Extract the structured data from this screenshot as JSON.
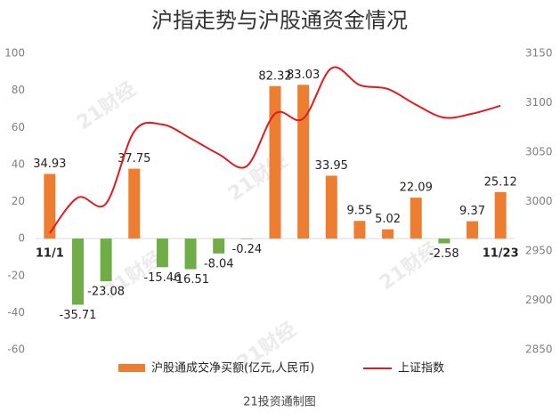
{
  "chart_data": {
    "type": "bar_line",
    "title": "沪指走势与沪股通资金情况",
    "footer": "21投资通制图",
    "watermark": "21财经",
    "categories": [
      "11/1",
      null,
      null,
      null,
      null,
      null,
      null,
      null,
      null,
      null,
      null,
      null,
      null,
      null,
      null,
      null,
      "11/23"
    ],
    "series": [
      {
        "name": "沪股通成交净买额(亿元,人民币)",
        "type": "bar",
        "color": "#ed7d31",
        "negative_color": "#70ad47",
        "values": [
          34.93,
          -35.71,
          -23.08,
          37.75,
          -15.46,
          -16.51,
          -8.04,
          -0.24,
          82.32,
          83.03,
          33.95,
          9.55,
          5.02,
          22.09,
          -2.58,
          9.37,
          25.12
        ]
      },
      {
        "name": "上证指数",
        "type": "line",
        "axis": "y2",
        "color": "#e31a1c",
        "values": [
          2968,
          3004,
          2998,
          3071,
          3078,
          3064,
          3048,
          3036,
          3089,
          3084,
          3135,
          3118,
          3114,
          3098,
          3085,
          3089,
          3097
        ]
      }
    ],
    "ylim": [
      -60,
      100
    ],
    "yticks": [
      100,
      80,
      60,
      40,
      20,
      0,
      -20,
      -40,
      -60
    ],
    "y2lim": [
      2850,
      3150
    ],
    "y2ticks": [
      3150,
      3100,
      3050,
      3000,
      2950,
      2900,
      2850
    ],
    "grid": false
  }
}
